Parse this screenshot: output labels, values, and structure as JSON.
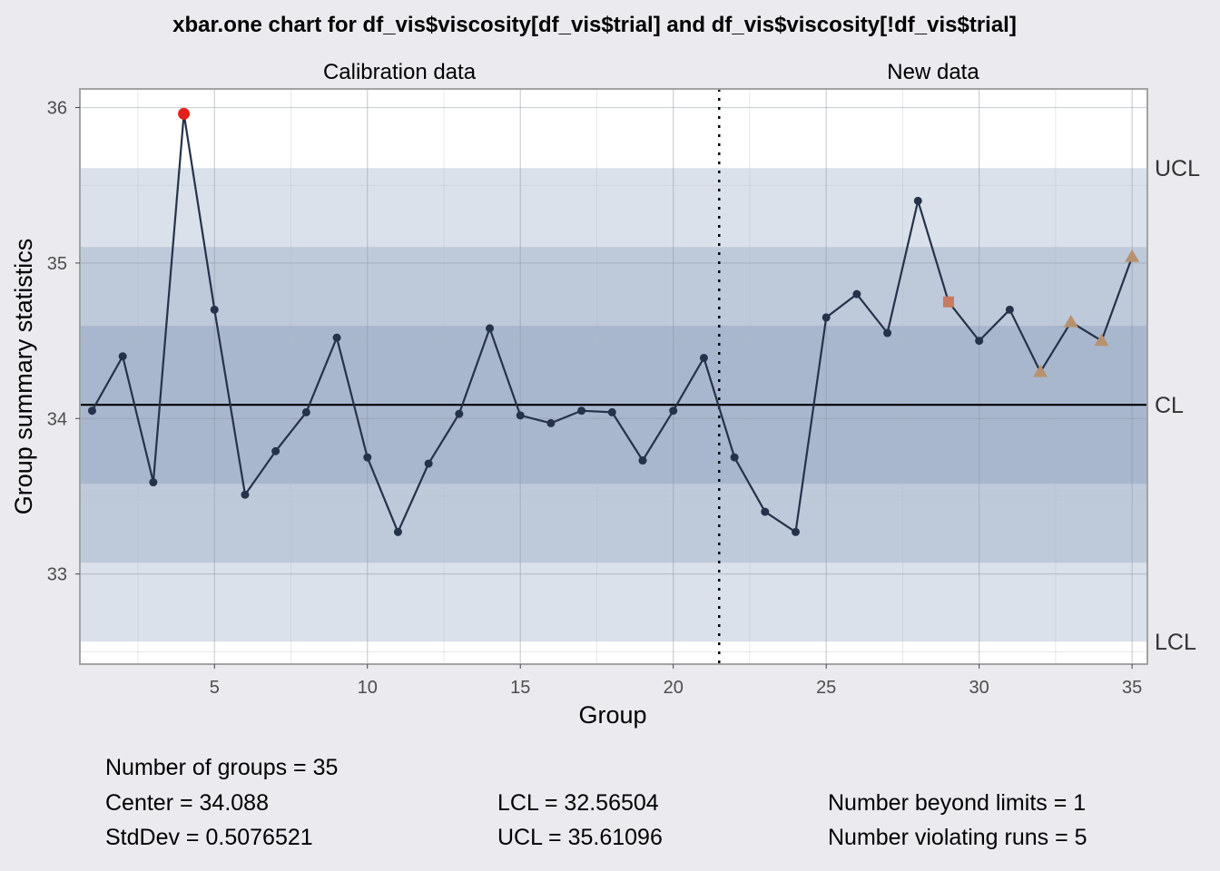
{
  "chart_data": {
    "type": "line",
    "chart_kind": "xbar.one control chart",
    "title": "xbar.one chart for df_vis$viscosity[df_vis$trial] and df_vis$viscosity[!df_vis$trial]",
    "xlabel": "Group",
    "ylabel": "Group summary statistics",
    "xlim": [
      0.6,
      35.5
    ],
    "ylim": [
      32.42,
      36.12
    ],
    "x_ticks": [
      5,
      10,
      15,
      20,
      25,
      30,
      35
    ],
    "y_ticks": [
      33,
      34,
      35
    ],
    "grid": true,
    "phase_labels": [
      "Calibration data",
      "New data"
    ],
    "phase_boundary": 21.5,
    "limits": {
      "CL": 34.088,
      "UCL": 35.61096,
      "LCL": 32.56504,
      "one_sigma": [
        33.5803,
        34.5957
      ],
      "two_sigma": [
        33.0727,
        35.1033
      ]
    },
    "limit_labels": [
      "UCL",
      "CL",
      "LCL"
    ],
    "x": [
      1,
      2,
      3,
      4,
      5,
      6,
      7,
      8,
      9,
      10,
      11,
      12,
      13,
      14,
      15,
      16,
      17,
      18,
      19,
      20,
      21,
      22,
      23,
      24,
      25,
      26,
      27,
      28,
      29,
      30,
      31,
      32,
      33,
      34,
      35
    ],
    "values": [
      34.05,
      34.4,
      33.59,
      35.96,
      34.7,
      33.51,
      33.79,
      34.04,
      34.52,
      33.75,
      33.27,
      33.71,
      34.03,
      34.58,
      34.02,
      33.97,
      34.05,
      34.04,
      33.73,
      34.05,
      34.39,
      33.75,
      33.4,
      33.27,
      34.65,
      34.8,
      34.55,
      35.4,
      34.75,
      34.5,
      34.7,
      34.3,
      34.62,
      34.5,
      35.04
    ],
    "point_status": [
      "normal",
      "normal",
      "normal",
      "beyond",
      "normal",
      "normal",
      "normal",
      "normal",
      "normal",
      "normal",
      "normal",
      "normal",
      "normal",
      "normal",
      "normal",
      "normal",
      "normal",
      "normal",
      "normal",
      "normal",
      "normal",
      "normal",
      "normal",
      "normal",
      "normal",
      "normal",
      "normal",
      "normal",
      "violating-square",
      "normal",
      "normal",
      "violating",
      "violating",
      "violating",
      "violating"
    ],
    "colors": {
      "background": "#ebebef",
      "panel": "#ffffff",
      "zone_outer": "#dbe1ea",
      "zone_middle": "#bec9da",
      "zone_inner": "#a8b7cd",
      "line": "#25324a",
      "beyond_point": "#e3211c",
      "violating_square": "#c97b62",
      "violating_triangle": "#b8916e",
      "center_line": "#000000"
    }
  },
  "stats": {
    "number_of_groups": "Number of groups = 35",
    "center": "Center = 34.088",
    "stddev": "StdDev = 0.5076521",
    "lcl": "LCL = 32.56504",
    "ucl": "UCL = 35.61096",
    "beyond_limits": "Number beyond limits = 1",
    "violating_runs": "Number violating runs = 5"
  }
}
